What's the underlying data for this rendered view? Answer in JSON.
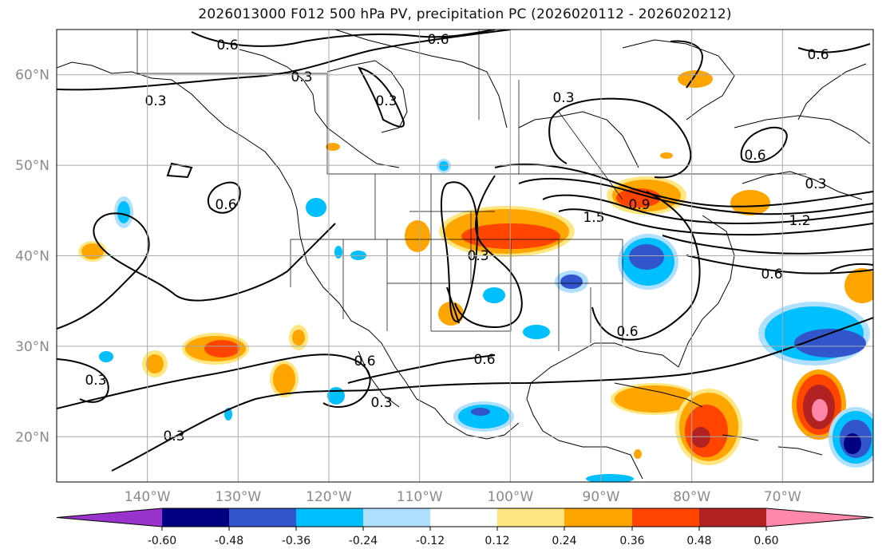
{
  "title": "2026013000 F012 500 hPa PV, precipitation PC (2026020112 - 2026020212)",
  "map": {
    "lat_range": [
      15,
      65
    ],
    "lon_range": [
      -150,
      -60
    ],
    "lat_ticks": [
      {
        "value": 60,
        "label": "60°N"
      },
      {
        "value": 50,
        "label": "50°N"
      },
      {
        "value": 40,
        "label": "40°N"
      },
      {
        "value": 30,
        "label": "30°N"
      },
      {
        "value": 20,
        "label": "20°N"
      }
    ],
    "lon_ticks": [
      {
        "value": -140,
        "label": "140°W"
      },
      {
        "value": -130,
        "label": "130°W"
      },
      {
        "value": -120,
        "label": "120°W"
      },
      {
        "value": -110,
        "label": "110°W"
      },
      {
        "value": -100,
        "label": "100°W"
      },
      {
        "value": -90,
        "label": "90°W"
      },
      {
        "value": -80,
        "label": "80°W"
      },
      {
        "value": -70,
        "label": "70°W"
      }
    ],
    "contour_labels": [
      "0.6",
      "0.3",
      "0.3",
      "0.3",
      "0.3",
      "0.6",
      "0.6",
      "0.3",
      "1.5",
      "0.9",
      "0.3",
      "1.2",
      "0.6",
      "0.6",
      "0.6",
      "0.3",
      "0.3",
      "0.3",
      "0.6",
      "0.6",
      "0.6"
    ]
  },
  "colorbar": {
    "colors": [
      "#9933cc",
      "#000080",
      "#3355cc",
      "#00bfff",
      "#b0e0ff",
      "#ffffff",
      "#ffe680",
      "#ffa500",
      "#ff4500",
      "#b22222",
      "#ff88aa"
    ],
    "boundaries": [
      "-0.60",
      "-0.48",
      "-0.36",
      "-0.24",
      "-0.12",
      "0.12",
      "0.24",
      "0.36",
      "0.48",
      "0.60"
    ]
  }
}
